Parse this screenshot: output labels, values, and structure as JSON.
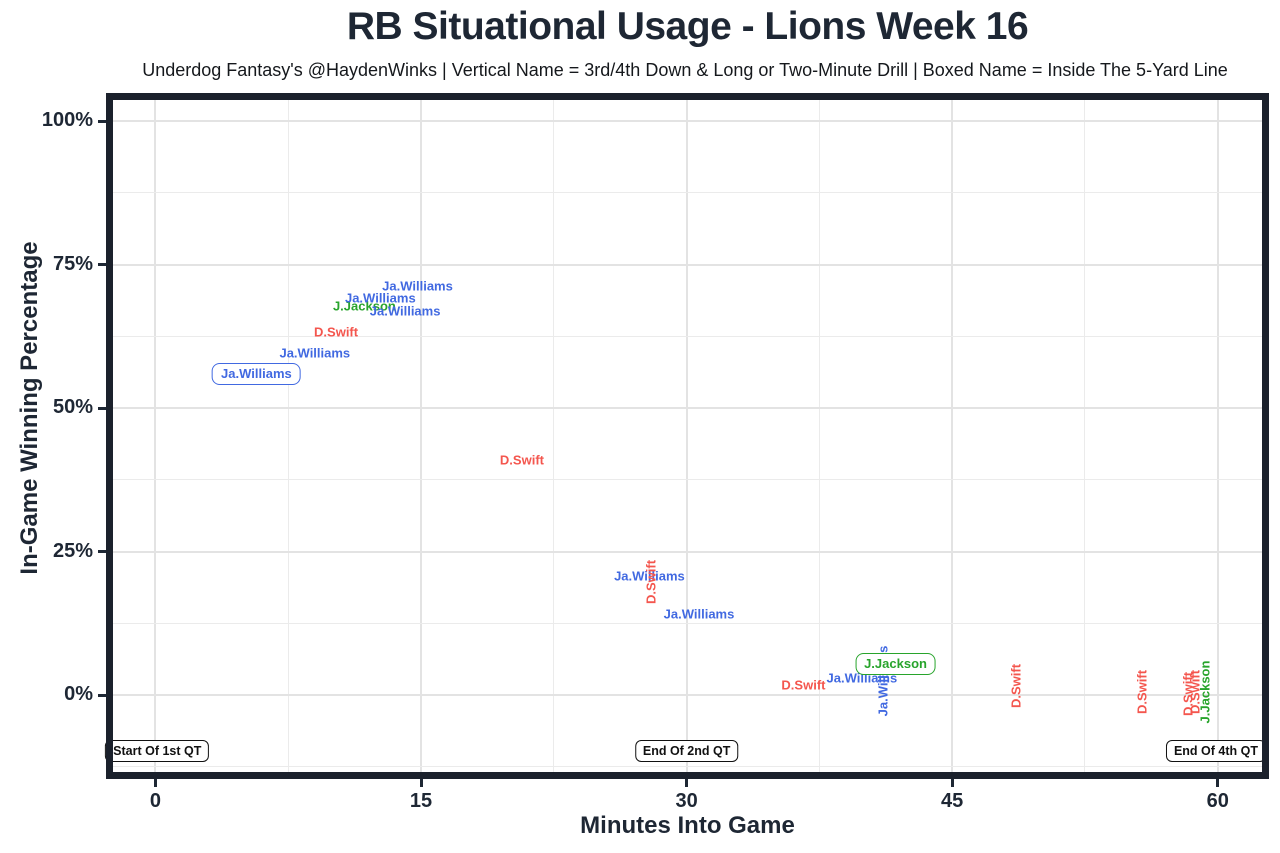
{
  "chart_data": {
    "type": "scatter",
    "title": "RB Situational Usage - Lions Week 16",
    "subtitle": "Underdog Fantasy's @HaydenWinks | Vertical Name = 3rd/4th Down & Long or Two-Minute Drill | Boxed Name = Inside The 5-Yard Line",
    "xlabel": "Minutes Into Game",
    "ylabel": "In-Game Winning Percentage",
    "xlim": [
      -2.4,
      62.5
    ],
    "ylim": [
      -13.4,
      103.7
    ],
    "grid": "major and minor gridlines, light gray on white",
    "legend": "none",
    "x_major_ticks": [
      0,
      15,
      30,
      45,
      60
    ],
    "x_tick_labels": [
      "0",
      "15",
      "30",
      "45",
      "60"
    ],
    "x_minor_gridlines": [
      7.5,
      22.5,
      37.5,
      52.5
    ],
    "y_major_ticks": [
      0,
      25,
      50,
      75,
      100
    ],
    "y_tick_labels": [
      "0%",
      "25%",
      "50%",
      "75%",
      "100%"
    ],
    "y_minor_gridlines": [
      -12.5,
      12.5,
      37.5,
      62.5,
      87.5
    ],
    "colors": {
      "Ja.Williams": "#4169E1",
      "D.Swift": "#F4564E",
      "J.Jackson": "#28A42C"
    },
    "points": [
      {
        "player": "Ja.Williams",
        "minute": 5.7,
        "win_pct": 56.0,
        "style": "boxed"
      },
      {
        "player": "Ja.Williams",
        "minute": 9.0,
        "win_pct": 59.6,
        "style": "horizontal"
      },
      {
        "player": "D.Swift",
        "minute": 10.2,
        "win_pct": 63.2,
        "style": "horizontal"
      },
      {
        "player": "J.Jackson",
        "minute": 11.8,
        "win_pct": 67.8,
        "style": "horizontal"
      },
      {
        "player": "Ja.Williams",
        "minute": 12.7,
        "win_pct": 69.2,
        "style": "horizontal"
      },
      {
        "player": "Ja.Williams",
        "minute": 14.1,
        "win_pct": 67.0,
        "style": "horizontal"
      },
      {
        "player": "Ja.Williams",
        "minute": 14.8,
        "win_pct": 71.3,
        "style": "horizontal"
      },
      {
        "player": "D.Swift",
        "minute": 20.7,
        "win_pct": 41.0,
        "style": "horizontal"
      },
      {
        "player": "Ja.Williams",
        "minute": 27.9,
        "win_pct": 20.7,
        "style": "horizontal"
      },
      {
        "player": "D.Swift",
        "minute": 28.0,
        "win_pct": 19.7,
        "style": "vertical"
      },
      {
        "player": "Ja.Williams",
        "minute": 30.7,
        "win_pct": 14.1,
        "style": "horizontal"
      },
      {
        "player": "D.Swift",
        "minute": 36.6,
        "win_pct": 1.7,
        "style": "horizontal"
      },
      {
        "player": "Ja.Williams",
        "minute": 39.9,
        "win_pct": 3.0,
        "style": "horizontal"
      },
      {
        "player": "Ja.Williams",
        "minute": 41.1,
        "win_pct": 2.4,
        "style": "vertical"
      },
      {
        "player": "J.Jackson",
        "minute": 41.8,
        "win_pct": 5.4,
        "style": "boxed"
      },
      {
        "player": "D.Swift",
        "minute": 48.6,
        "win_pct": 1.6,
        "style": "vertical"
      },
      {
        "player": "D.Swift",
        "minute": 55.7,
        "win_pct": 0.5,
        "style": "vertical"
      },
      {
        "player": "D.Swift",
        "minute": 58.3,
        "win_pct": 0.2,
        "style": "vertical"
      },
      {
        "player": "D.Swift",
        "minute": 58.7,
        "win_pct": 0.5,
        "style": "vertical"
      },
      {
        "player": "J.Jackson",
        "minute": 59.3,
        "win_pct": 0.5,
        "style": "vertical"
      }
    ],
    "annotations": [
      {
        "label": "Start Of 1st QT",
        "minute": 0.1,
        "win_pct": -9.7
      },
      {
        "label": "End Of 2nd QT",
        "minute": 30.0,
        "win_pct": -9.7
      },
      {
        "label": "End Of 4th QT",
        "minute": 59.9,
        "win_pct": -9.7
      }
    ]
  }
}
